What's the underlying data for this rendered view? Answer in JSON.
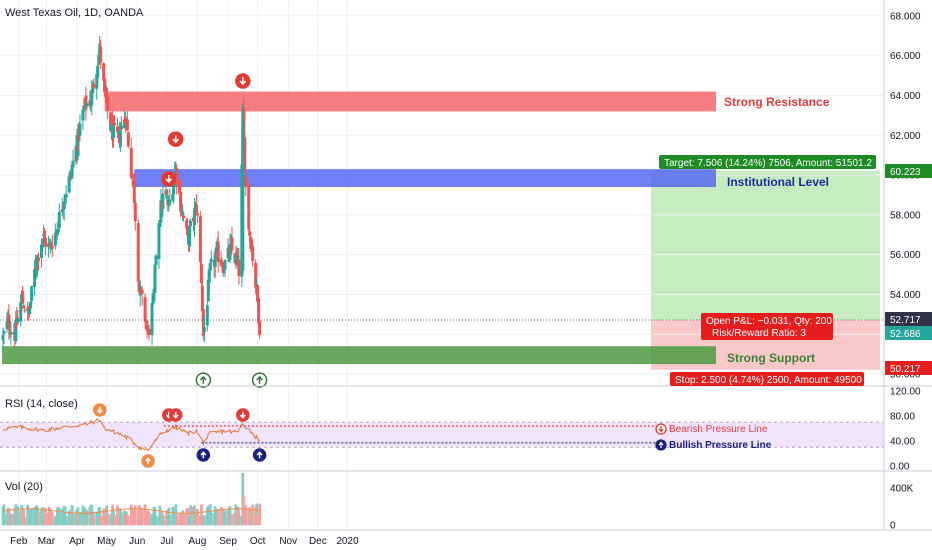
{
  "header": {
    "title": "West Texas Oil, 1D, OANDA"
  },
  "colors": {
    "up": "#26a69a",
    "down": "#ef5350",
    "resistance": "#f4666a",
    "institutional": "#4d60f5",
    "support": "#4e9a42",
    "target_zone": "#c8ecc2",
    "stop_zone": "#f9c9c9",
    "rsi_line": "#e5722c",
    "rsi_band": "#f1e4fb",
    "signal_red": "#e53935",
    "signal_orange": "#f08a45",
    "signal_green": "#2e7d32",
    "signal_navy": "#1a237e",
    "price_label": "#2f3347",
    "target_label": "#1f8b24",
    "stop_label": "#e51d1d"
  },
  "chart_data": [
    {
      "type": "candlestick",
      "title": "West Texas Oil, 1D, OANDA",
      "x_tick_labels": [
        "Feb",
        "Mar",
        "Apr",
        "May",
        "Jun",
        "Jul",
        "Aug",
        "Sep",
        "Oct",
        "Nov",
        "Dec",
        "2020"
      ],
      "y_tick_labels": [
        "68.000",
        "66.000",
        "64.000",
        "62.000",
        "60.000",
        "58.000",
        "56.000",
        "54.000",
        "52.000",
        "50.000"
      ],
      "ylim": [
        49.5,
        68.6
      ],
      "price_path": [
        [
          "Jan 16",
          51.8
        ],
        [
          "Jan 21",
          52.6
        ],
        [
          "Jan 28",
          52.0
        ],
        [
          "Feb 4",
          53.8
        ],
        [
          "Feb 11",
          52.9
        ],
        [
          "Feb 18",
          55.5
        ],
        [
          "Feb 25",
          56.9
        ],
        [
          "Mar 4",
          56.3
        ],
        [
          "Mar 11",
          57.2
        ],
        [
          "Mar 18",
          58.8
        ],
        [
          "Mar 25",
          59.9
        ],
        [
          "Apr 1",
          61.6
        ],
        [
          "Apr 8",
          63.4
        ],
        [
          "Apr 15",
          63.8
        ],
        [
          "Apr 22",
          65.8
        ],
        [
          "Apr 24",
          66.3
        ],
        [
          "Apr 29",
          64.0
        ],
        [
          "May 6",
          62.2
        ],
        [
          "May 13",
          61.8
        ],
        [
          "May 20",
          63.1
        ],
        [
          "May 24",
          61.2
        ],
        [
          "May 29",
          58.9
        ],
        [
          "Jun 3",
          54.2
        ],
        [
          "Jun 7",
          53.4
        ],
        [
          "Jun 12",
          52.0
        ],
        [
          "Jun 18",
          53.9
        ],
        [
          "Jun 21",
          57.3
        ],
        [
          "Jun 28",
          59.1
        ],
        [
          "Jul 3",
          58.4
        ],
        [
          "Jul 10",
          60.4
        ],
        [
          "Jul 15",
          58.6
        ],
        [
          "Jul 22",
          56.7
        ],
        [
          "Jul 31",
          58.5
        ],
        [
          "Aug 5",
          54.8
        ],
        [
          "Aug 7",
          51.9
        ],
        [
          "Aug 14",
          55.2
        ],
        [
          "Aug 21",
          56.1
        ],
        [
          "Aug 28",
          55.4
        ],
        [
          "Sep 4",
          56.3
        ],
        [
          "Sep 11",
          55.5
        ],
        [
          "Sep 13",
          54.9
        ],
        [
          "Sep 16",
          62.9
        ],
        [
          "Sep 20",
          58.2
        ],
        [
          "Sep 25",
          56.4
        ],
        [
          "Oct 1",
          53.6
        ],
        [
          "Oct 3",
          52.4
        ],
        [
          "Oct 4",
          52.7
        ]
      ],
      "last_price": "52.717",
      "second_price_label": "52.686",
      "zones": {
        "strong_resistance": {
          "label": "Strong Resistance",
          "range": [
            63.2,
            64.2
          ]
        },
        "institutional_level": {
          "label": "Institutional Level",
          "range": [
            59.4,
            60.3
          ]
        },
        "strong_support": {
          "label": "Strong Support",
          "range": [
            50.5,
            51.4
          ]
        }
      },
      "position": {
        "target": {
          "price": "60.223",
          "label": "Target: 7.506 (14.24%) 7506, Amount: 51501.2"
        },
        "entry_info": {
          "line1": "Open P&L: −0.031, Qty: 200",
          "line2": "Risk/Reward Ratio: 3"
        },
        "stop": {
          "price": "50.217",
          "label": "Stop: 2.500 (4.74%) 2500, Amount: 49500"
        }
      },
      "signals": [
        {
          "date": "Apr 24",
          "kind": "down",
          "color": "orange",
          "panel": "rsi"
        },
        {
          "date": "Jun 12",
          "kind": "up",
          "color": "orange",
          "panel": "rsi"
        },
        {
          "date": "Jul 3",
          "kind": "down",
          "color": "red",
          "panel": "price"
        },
        {
          "date": "Jul 10",
          "kind": "down",
          "color": "red",
          "panel": "price"
        },
        {
          "date": "Jul 3",
          "kind": "down",
          "color": "red",
          "panel": "rsi"
        },
        {
          "date": "Jul 10",
          "kind": "down",
          "color": "red",
          "panel": "rsi"
        },
        {
          "date": "Aug 7",
          "kind": "up",
          "color": "green",
          "panel": "price"
        },
        {
          "date": "Aug 7",
          "kind": "up",
          "color": "navy",
          "panel": "rsi"
        },
        {
          "date": "Sep 16",
          "kind": "down",
          "color": "red",
          "panel": "price"
        },
        {
          "date": "Sep 16",
          "kind": "down",
          "color": "red",
          "panel": "rsi"
        },
        {
          "date": "Oct 3",
          "kind": "up",
          "color": "green",
          "panel": "price"
        },
        {
          "date": "Oct 3",
          "kind": "up",
          "color": "navy",
          "panel": "rsi"
        }
      ]
    },
    {
      "type": "line",
      "title": "RSI (14, close)",
      "y_tick_labels": [
        "120.00",
        "80.00",
        "40.00",
        "0.00"
      ],
      "ylim": [
        -5,
        125
      ],
      "band": [
        30,
        70
      ],
      "rsi_path": [
        [
          "Jan 16",
          60
        ],
        [
          "Feb 4",
          62
        ],
        [
          "Feb 25",
          57
        ],
        [
          "Mar 18",
          62
        ],
        [
          "Apr 8",
          66
        ],
        [
          "Apr 24",
          74
        ],
        [
          "Apr 29",
          60
        ],
        [
          "May 13",
          52
        ],
        [
          "May 24",
          44
        ],
        [
          "Jun 3",
          30
        ],
        [
          "Jun 12",
          25
        ],
        [
          "Jun 21",
          44
        ],
        [
          "Jun 28",
          55
        ],
        [
          "Jul 3",
          58
        ],
        [
          "Jul 10",
          62
        ],
        [
          "Jul 22",
          52
        ],
        [
          "Jul 31",
          56
        ],
        [
          "Aug 7",
          38
        ],
        [
          "Aug 14",
          52
        ],
        [
          "Aug 28",
          56
        ],
        [
          "Sep 11",
          54
        ],
        [
          "Sep 16",
          68
        ],
        [
          "Sep 25",
          54
        ],
        [
          "Oct 1",
          44
        ],
        [
          "Oct 4",
          42
        ]
      ],
      "bearish_line": {
        "label": "Bearish Pressure Line",
        "value": 64,
        "from": "Jun 28",
        "to": "Oct 4"
      },
      "bullish_line": {
        "label": "Bullish Pressure Line",
        "value": 37,
        "from": "Aug 5",
        "to": "Oct 4"
      }
    },
    {
      "type": "bar",
      "title": "Vol (20)",
      "y_tick_labels": [
        "400K",
        "0"
      ],
      "ylim": [
        -30000,
        560000
      ],
      "volume_spike": {
        "date": "Sep 16",
        "value": 560000
      },
      "typical_volume": 160000
    }
  ]
}
